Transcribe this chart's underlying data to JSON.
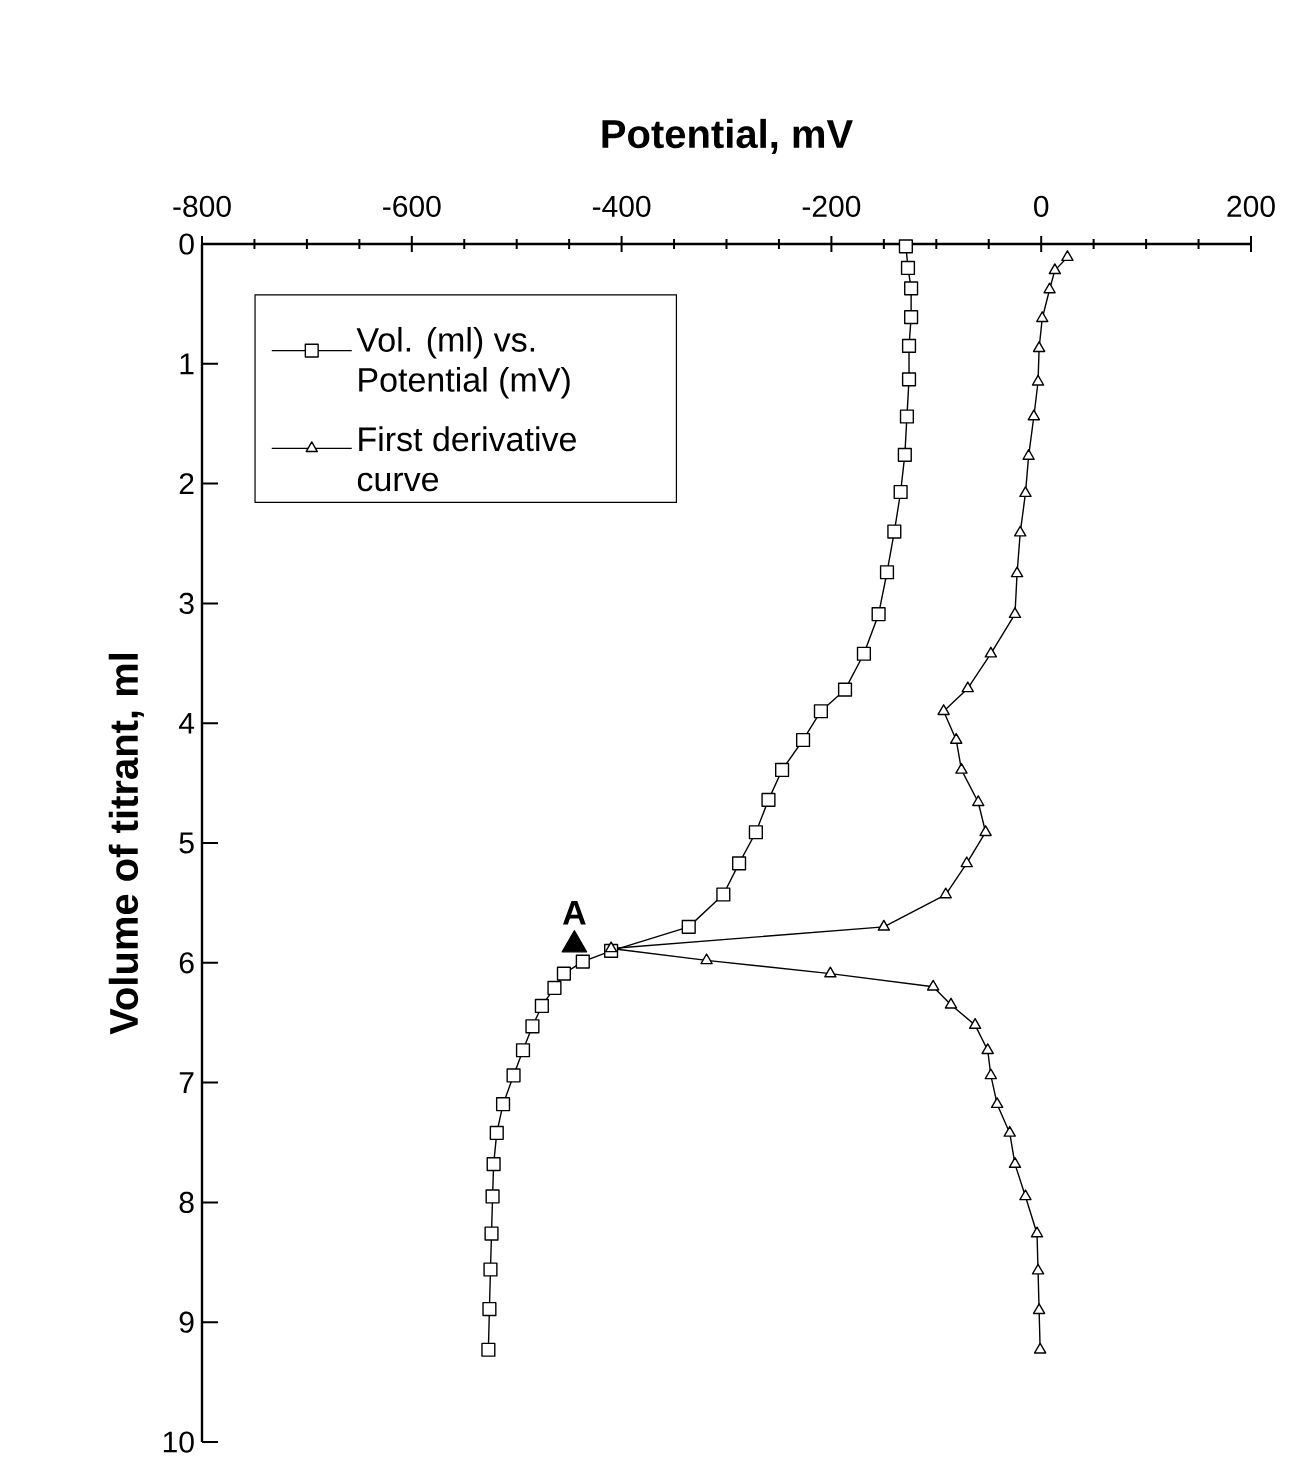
{
  "chart_data": {
    "type": "line",
    "xlabel": "Potential, mV",
    "ylabel": "Volume of titrant, ml",
    "xlim": [
      -800,
      200
    ],
    "ylim": [
      10,
      0
    ],
    "xticks": [
      -800,
      -600,
      -400,
      -200,
      0,
      200
    ],
    "yticks": [
      0,
      1,
      2,
      3,
      4,
      5,
      6,
      7,
      8,
      9,
      10
    ],
    "legend": "top left",
    "series": [
      {
        "name": "Vol. (ml) vs. Potential (mV)",
        "color": "#000000",
        "marker": "square",
        "x": [
          -129,
          -127,
          -124,
          -124,
          -126,
          -126,
          -128,
          -130,
          -134,
          -140,
          -147,
          -155,
          -169,
          -187,
          -210,
          -227,
          -247,
          -260,
          -272,
          -288,
          -303,
          -336,
          -410,
          -437,
          -455,
          -464,
          -476,
          -485,
          -494,
          -503,
          -513,
          -519,
          -522,
          -523,
          -524,
          -525,
          -526,
          -527
        ],
        "values": [
          0.02,
          0.2,
          0.37,
          0.61,
          0.85,
          1.13,
          1.44,
          1.76,
          2.07,
          2.4,
          2.74,
          3.09,
          3.42,
          3.72,
          3.9,
          4.14,
          4.39,
          4.64,
          4.91,
          5.17,
          5.43,
          5.7,
          5.9,
          5.99,
          6.09,
          6.21,
          6.36,
          6.53,
          6.73,
          6.94,
          7.18,
          7.42,
          7.68,
          7.95,
          8.26,
          8.56,
          8.89,
          9.23
        ]
      },
      {
        "name": "First derivative curve",
        "color": "#000000",
        "marker": "triangle",
        "x": [
          25,
          13,
          8,
          1,
          -2,
          -3,
          -7,
          -12,
          -15,
          -20,
          -23,
          -25,
          -48,
          -70,
          -93,
          -81,
          -76,
          -60,
          -53,
          -71,
          -91,
          -150,
          -410,
          -319,
          -201,
          -103,
          -86,
          -63,
          -51,
          -48,
          -42,
          -30,
          -25,
          -15,
          -4,
          -3,
          -2,
          -1
        ],
        "values": [
          0.11,
          0.22,
          0.38,
          0.62,
          0.87,
          1.15,
          1.44,
          1.77,
          2.08,
          2.41,
          2.75,
          3.09,
          3.42,
          3.71,
          3.9,
          4.14,
          4.39,
          4.66,
          4.91,
          5.17,
          5.43,
          5.7,
          5.88,
          5.98,
          6.09,
          6.2,
          6.35,
          6.52,
          6.73,
          6.94,
          7.18,
          7.42,
          7.68,
          7.95,
          8.26,
          8.57,
          8.9,
          9.23
        ]
      },
      {
        "type": "scatter",
        "color": "#000000",
        "marker": "triangle",
        "x": [
          -445
        ],
        "values": [
          5.85
        ]
      }
    ],
    "annotations": [
      {
        "text": "A",
        "x": -445,
        "y": 5.85
      }
    ]
  }
}
